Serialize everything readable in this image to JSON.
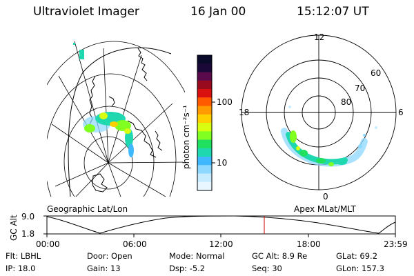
{
  "header": {
    "instrument": "Ultraviolet Imager",
    "date": "16 Jan 00",
    "time": "15:12:07 UT"
  },
  "geo_panel": {
    "label": "Geographic Lat/Lon"
  },
  "polar_panel": {
    "label": "Apex MLat/MLT",
    "mlt_labels": {
      "top": "12",
      "bottom": "0",
      "left": "18",
      "right": "6"
    },
    "lat_labels": [
      "60",
      "70",
      "80"
    ]
  },
  "colorbar": {
    "unit": "photon cm⁻²s⁻¹",
    "ticks": [
      "100",
      "10"
    ],
    "colors": [
      "#0a0a2a",
      "#1a0838",
      "#5a0a4a",
      "#9a0a1e",
      "#d81010",
      "#ff5a00",
      "#ff9a00",
      "#ffd000",
      "#d8ff10",
      "#80ff20",
      "#20e060",
      "#20d8b0",
      "#40b8ff",
      "#8cd8ff",
      "#c8ecff",
      "#e8f6ff"
    ]
  },
  "timeline": {
    "ylabel": "GC Alt",
    "ymax": "9.0",
    "ymin": "1.8",
    "xticks": [
      "00:00",
      "06:00",
      "12:00",
      "18:00",
      "23:59"
    ],
    "cursor_color": "#cc0000"
  },
  "info": {
    "row1": [
      {
        "key": "flt",
        "text": "Flt: LBHL"
      },
      {
        "key": "door",
        "text": "Door: Open"
      },
      {
        "key": "mode",
        "text": "Mode: Normal"
      },
      {
        "key": "gcalt",
        "text": "GC Alt: 8.9 Re"
      },
      {
        "key": "glat",
        "text": "GLat: 69.2"
      }
    ],
    "row2": [
      {
        "key": "ip",
        "text": "IP: 18.0"
      },
      {
        "key": "gain",
        "text": "Gain: 13"
      },
      {
        "key": "dsp",
        "text": "Dsp:   -5.2"
      },
      {
        "key": "seq",
        "text": "Seq: 30"
      },
      {
        "key": "glon",
        "text": "GLon: 157.3"
      }
    ]
  }
}
